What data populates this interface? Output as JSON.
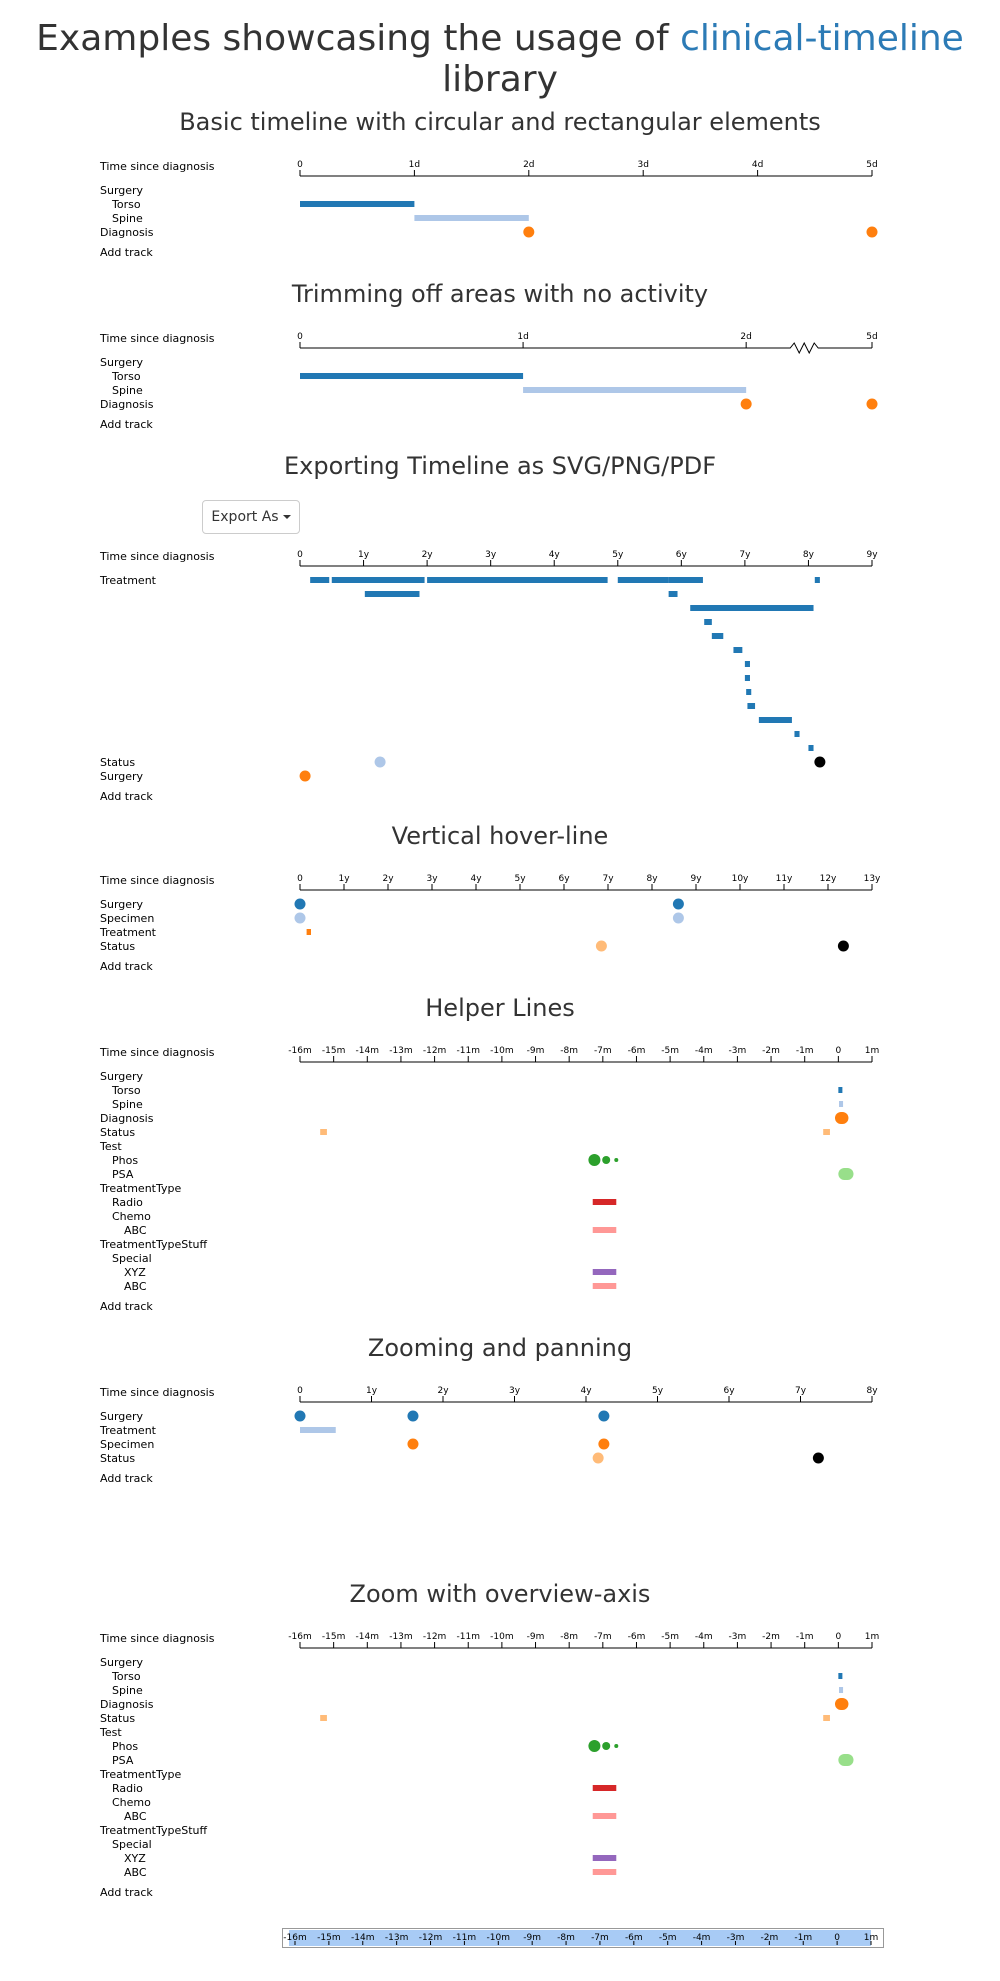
{
  "page": {
    "title_prefix": "Examples showcasing the usage of ",
    "title_link": "clinical-timeline",
    "title_suffix": " library"
  },
  "colors": {
    "dark_blue": "#2178b4",
    "light_blue": "#aec7e8",
    "orange": "#ff7f0e",
    "light_orange": "#ffbb78",
    "green": "#2ca02c",
    "light_green": "#98df8a",
    "red": "#d62728",
    "pink": "#ff9896",
    "purple": "#9467bd",
    "black": "#000000"
  },
  "export_button": {
    "label": "Export As"
  },
  "sections": [
    {
      "title": "Basic timeline with circular and rectangular elements",
      "axis_label": "Time since diagnosis",
      "ticks": [
        "0",
        "1d",
        "2d",
        "3d",
        "4d",
        "5d"
      ],
      "tick_values": [
        0,
        1,
        2,
        3,
        4,
        5
      ],
      "domain": [
        0,
        5
      ],
      "break": null,
      "tracks": [
        {
          "label": "Surgery",
          "indent": 0
        },
        {
          "label": "Torso",
          "indent": 1
        },
        {
          "label": "Spine",
          "indent": 1
        },
        {
          "label": "Diagnosis",
          "indent": 0
        }
      ],
      "add_track": "Add track",
      "events": [
        {
          "row": 1,
          "type": "rect",
          "start": 0,
          "end": 1,
          "color": "#2178b4"
        },
        {
          "row": 2,
          "type": "rect",
          "start": 1,
          "end": 2,
          "color": "#aec7e8"
        },
        {
          "row": 3,
          "type": "circle",
          "at": 2,
          "color": "#ff7f0e"
        },
        {
          "row": 3,
          "type": "circle",
          "at": 5,
          "color": "#ff7f0e"
        }
      ]
    },
    {
      "title": "Trimming off areas with no activity",
      "axis_label": "Time since diagnosis",
      "ticks": [
        "0",
        "1d",
        "2d",
        "5d"
      ],
      "tick_values": [
        0,
        1,
        2,
        5
      ],
      "domain": [
        0,
        5
      ],
      "break": {
        "from": 2,
        "to": 5
      },
      "tracks": [
        {
          "label": "Surgery",
          "indent": 0
        },
        {
          "label": "Torso",
          "indent": 1
        },
        {
          "label": "Spine",
          "indent": 1
        },
        {
          "label": "Diagnosis",
          "indent": 0
        }
      ],
      "add_track": "Add track",
      "events": [
        {
          "row": 1,
          "type": "rect",
          "start": 0,
          "end": 1,
          "color": "#2178b4"
        },
        {
          "row": 2,
          "type": "rect",
          "start": 1,
          "end": 2,
          "color": "#aec7e8"
        },
        {
          "row": 3,
          "type": "circle",
          "at": 2,
          "color": "#ff7f0e"
        },
        {
          "row": 3,
          "type": "circle",
          "at": 5,
          "color": "#ff7f0e"
        }
      ]
    },
    {
      "title": "Exporting Timeline as SVG/PNG/PDF",
      "axis_label": "Time since diagnosis",
      "ticks": [
        "0",
        "1y",
        "2y",
        "3y",
        "4y",
        "5y",
        "6y",
        "7y",
        "8y",
        "9y"
      ],
      "tick_values": [
        0,
        1,
        2,
        3,
        4,
        5,
        6,
        7,
        8,
        9
      ],
      "domain": [
        0,
        9
      ],
      "break": null,
      "tracks": [
        {
          "label": "Treatment",
          "indent": 0,
          "span": 13
        },
        {
          "label": "Status",
          "indent": 0
        },
        {
          "label": "Surgery",
          "indent": 0
        }
      ],
      "add_track": "Add track",
      "events": [
        {
          "row": 0,
          "sub": 0,
          "type": "rect",
          "start": 0.16,
          "end": 0.46,
          "color": "#2178b4"
        },
        {
          "row": 0,
          "sub": 0,
          "type": "rect",
          "start": 0.5,
          "end": 1.96,
          "color": "#2178b4"
        },
        {
          "row": 0,
          "sub": 0,
          "type": "rect",
          "start": 2.0,
          "end": 4.84,
          "color": "#2178b4"
        },
        {
          "row": 0,
          "sub": 0,
          "type": "rect",
          "start": 5.0,
          "end": 5.8,
          "color": "#2178b4"
        },
        {
          "row": 0,
          "sub": 0,
          "type": "rect",
          "start": 5.8,
          "end": 6.34,
          "color": "#2178b4"
        },
        {
          "row": 0,
          "sub": 0,
          "type": "rect",
          "start": 8.1,
          "end": 8.18,
          "color": "#2178b4"
        },
        {
          "row": 0,
          "sub": 1,
          "type": "rect",
          "start": 1.02,
          "end": 1.88,
          "color": "#2178b4"
        },
        {
          "row": 0,
          "sub": 1,
          "type": "rect",
          "start": 5.8,
          "end": 5.94,
          "color": "#2178b4"
        },
        {
          "row": 0,
          "sub": 2,
          "type": "rect",
          "start": 6.14,
          "end": 8.08,
          "color": "#2178b4"
        },
        {
          "row": 0,
          "sub": 3,
          "type": "rect",
          "start": 6.36,
          "end": 6.48,
          "color": "#2178b4"
        },
        {
          "row": 0,
          "sub": 4,
          "type": "rect",
          "start": 6.48,
          "end": 6.66,
          "color": "#2178b4"
        },
        {
          "row": 0,
          "sub": 5,
          "type": "rect",
          "start": 6.82,
          "end": 6.96,
          "color": "#2178b4"
        },
        {
          "row": 0,
          "sub": 6,
          "type": "rect",
          "start": 7.0,
          "end": 7.08,
          "color": "#2178b4"
        },
        {
          "row": 0,
          "sub": 7,
          "type": "rect",
          "start": 7.0,
          "end": 7.08,
          "color": "#2178b4"
        },
        {
          "row": 0,
          "sub": 8,
          "type": "rect",
          "start": 7.02,
          "end": 7.1,
          "color": "#2178b4"
        },
        {
          "row": 0,
          "sub": 9,
          "type": "rect",
          "start": 7.04,
          "end": 7.16,
          "color": "#2178b4"
        },
        {
          "row": 0,
          "sub": 10,
          "type": "rect",
          "start": 7.22,
          "end": 7.74,
          "color": "#2178b4"
        },
        {
          "row": 0,
          "sub": 11,
          "type": "rect",
          "start": 7.78,
          "end": 7.86,
          "color": "#2178b4"
        },
        {
          "row": 0,
          "sub": 12,
          "type": "rect",
          "start": 8.0,
          "end": 8.08,
          "color": "#2178b4"
        },
        {
          "row": 1,
          "type": "circle",
          "at": 1.26,
          "color": "#aec7e8"
        },
        {
          "row": 1,
          "type": "circle",
          "at": 8.18,
          "color": "#000000"
        },
        {
          "row": 2,
          "type": "circle",
          "at": 0.08,
          "color": "#ff7f0e"
        }
      ]
    },
    {
      "title": "Vertical hover-line",
      "axis_label": "Time since diagnosis",
      "ticks": [
        "0",
        "1y",
        "2y",
        "3y",
        "4y",
        "5y",
        "6y",
        "7y",
        "8y",
        "9y",
        "10y",
        "11y",
        "12y",
        "13y"
      ],
      "tick_values": [
        0,
        1,
        2,
        3,
        4,
        5,
        6,
        7,
        8,
        9,
        10,
        11,
        12,
        13
      ],
      "domain": [
        0,
        13
      ],
      "break": null,
      "tracks": [
        {
          "label": "Surgery",
          "indent": 0
        },
        {
          "label": "Specimen",
          "indent": 0
        },
        {
          "label": "Treatment",
          "indent": 0
        },
        {
          "label": "Status",
          "indent": 0
        }
      ],
      "add_track": "Add track",
      "events": [
        {
          "row": 0,
          "type": "circle",
          "at": 0,
          "color": "#2178b4"
        },
        {
          "row": 0,
          "type": "circle",
          "at": 8.6,
          "color": "#2178b4"
        },
        {
          "row": 1,
          "type": "circle",
          "at": 0,
          "color": "#aec7e8"
        },
        {
          "row": 1,
          "type": "circle",
          "at": 8.6,
          "color": "#aec7e8"
        },
        {
          "row": 2,
          "type": "rect",
          "start": 0.15,
          "end": 0.25,
          "color": "#ff7f0e"
        },
        {
          "row": 3,
          "type": "circle",
          "at": 6.85,
          "color": "#ffbb78"
        },
        {
          "row": 3,
          "type": "circle",
          "at": 12.35,
          "color": "#000000"
        }
      ]
    },
    {
      "title": "Helper Lines",
      "axis_label": "Time since diagnosis",
      "ticks": [
        "-16m",
        "-15m",
        "-14m",
        "-13m",
        "-12m",
        "-11m",
        "-10m",
        "-9m",
        "-8m",
        "-7m",
        "-6m",
        "-5m",
        "-4m",
        "-3m",
        "-2m",
        "-1m",
        "0",
        "1m"
      ],
      "tick_values": [
        -16,
        -15,
        -14,
        -13,
        -12,
        -11,
        -10,
        -9,
        -8,
        -7,
        -6,
        -5,
        -4,
        -3,
        -2,
        -1,
        0,
        1
      ],
      "domain": [
        -16,
        1
      ],
      "break": null,
      "tracks": [
        {
          "label": "Surgery",
          "indent": 0
        },
        {
          "label": "Torso",
          "indent": 1
        },
        {
          "label": "Spine",
          "indent": 1
        },
        {
          "label": "Diagnosis",
          "indent": 0
        },
        {
          "label": "Status",
          "indent": 0
        },
        {
          "label": "Test",
          "indent": 0
        },
        {
          "label": "Phos",
          "indent": 1
        },
        {
          "label": "PSA",
          "indent": 1
        },
        {
          "label": "TreatmentType",
          "indent": 0
        },
        {
          "label": "Radio",
          "indent": 1
        },
        {
          "label": "Chemo",
          "indent": 1
        },
        {
          "label": "ABC",
          "indent": 2
        },
        {
          "label": "TreatmentTypeStuff",
          "indent": 0
        },
        {
          "label": "Special",
          "indent": 1
        },
        {
          "label": "XYZ",
          "indent": 2
        },
        {
          "label": "ABC",
          "indent": 2
        }
      ],
      "add_track": "Add track",
      "events": [
        {
          "row": 1,
          "type": "rect",
          "start": 0.0,
          "end": 0.12,
          "color": "#2178b4",
          "h": 6
        },
        {
          "row": 2,
          "type": "rect",
          "start": 0.02,
          "end": 0.14,
          "color": "#aec7e8",
          "h": 6
        },
        {
          "row": 3,
          "type": "blob",
          "start": -0.1,
          "end": 0.3,
          "color": "#ff7f0e"
        },
        {
          "row": 4,
          "type": "rect",
          "start": -15.4,
          "end": -15.2,
          "color": "#ffbb78",
          "h": 6
        },
        {
          "row": 4,
          "type": "rect",
          "start": -0.45,
          "end": -0.25,
          "color": "#ffbb78",
          "h": 6
        },
        {
          "row": 6,
          "type": "circle",
          "at": -7.25,
          "color": "#2ca02c",
          "r": 6
        },
        {
          "row": 6,
          "type": "circle",
          "at": -6.9,
          "color": "#2ca02c",
          "r": 4
        },
        {
          "row": 6,
          "type": "circle",
          "at": -6.6,
          "color": "#2ca02c",
          "r": 2
        },
        {
          "row": 7,
          "type": "blob",
          "start": 0.0,
          "end": 0.45,
          "color": "#98df8a"
        },
        {
          "row": 9,
          "type": "rect",
          "start": -7.3,
          "end": -6.6,
          "color": "#d62728",
          "h": 6
        },
        {
          "row": 11,
          "type": "rect",
          "start": -7.3,
          "end": -6.6,
          "color": "#ff9896",
          "h": 6
        },
        {
          "row": 14,
          "type": "rect",
          "start": -7.3,
          "end": -6.6,
          "color": "#9467bd",
          "h": 6
        },
        {
          "row": 15,
          "type": "rect",
          "start": -7.3,
          "end": -6.6,
          "color": "#ff9896",
          "h": 6
        }
      ]
    },
    {
      "title": "Zooming and panning",
      "axis_label": "Time since diagnosis",
      "ticks": [
        "0",
        "1y",
        "2y",
        "3y",
        "4y",
        "5y",
        "6y",
        "7y",
        "8y"
      ],
      "tick_values": [
        0,
        1,
        2,
        3,
        4,
        5,
        6,
        7,
        8
      ],
      "domain": [
        0,
        8
      ],
      "break": null,
      "tracks": [
        {
          "label": "Surgery",
          "indent": 0
        },
        {
          "label": "Treatment",
          "indent": 0
        },
        {
          "label": "Specimen",
          "indent": 0
        },
        {
          "label": "Status",
          "indent": 0
        }
      ],
      "add_track": "Add track",
      "events": [
        {
          "row": 0,
          "type": "circle",
          "at": 0,
          "color": "#2178b4"
        },
        {
          "row": 0,
          "type": "circle",
          "at": 1.58,
          "color": "#2178b4"
        },
        {
          "row": 0,
          "type": "circle",
          "at": 4.25,
          "color": "#2178b4"
        },
        {
          "row": 1,
          "type": "rect",
          "start": 0,
          "end": 0.5,
          "color": "#aec7e8"
        },
        {
          "row": 2,
          "type": "circle",
          "at": 1.58,
          "color": "#ff7f0e"
        },
        {
          "row": 2,
          "type": "circle",
          "at": 4.25,
          "color": "#ff7f0e"
        },
        {
          "row": 3,
          "type": "circle",
          "at": 4.17,
          "color": "#ffbb78"
        },
        {
          "row": 3,
          "type": "circle",
          "at": 7.25,
          "color": "#000000"
        }
      ]
    },
    {
      "title": "Zoom with overview-axis",
      "axis_label": "Time since diagnosis",
      "ticks": [
        "-16m",
        "-15m",
        "-14m",
        "-13m",
        "-12m",
        "-11m",
        "-10m",
        "-9m",
        "-8m",
        "-7m",
        "-6m",
        "-5m",
        "-4m",
        "-3m",
        "-2m",
        "-1m",
        "0",
        "1m"
      ],
      "tick_values": [
        -16,
        -15,
        -14,
        -13,
        -12,
        -11,
        -10,
        -9,
        -8,
        -7,
        -6,
        -5,
        -4,
        -3,
        -2,
        -1,
        0,
        1
      ],
      "domain": [
        -16,
        1
      ],
      "break": null,
      "tracks": [
        {
          "label": "Surgery",
          "indent": 0
        },
        {
          "label": "Torso",
          "indent": 1
        },
        {
          "label": "Spine",
          "indent": 1
        },
        {
          "label": "Diagnosis",
          "indent": 0
        },
        {
          "label": "Status",
          "indent": 0
        },
        {
          "label": "Test",
          "indent": 0
        },
        {
          "label": "Phos",
          "indent": 1
        },
        {
          "label": "PSA",
          "indent": 1
        },
        {
          "label": "TreatmentType",
          "indent": 0
        },
        {
          "label": "Radio",
          "indent": 1
        },
        {
          "label": "Chemo",
          "indent": 1
        },
        {
          "label": "ABC",
          "indent": 2
        },
        {
          "label": "TreatmentTypeStuff",
          "indent": 0
        },
        {
          "label": "Special",
          "indent": 1
        },
        {
          "label": "XYZ",
          "indent": 2
        },
        {
          "label": "ABC",
          "indent": 2
        }
      ],
      "add_track": "Add track",
      "events": [
        {
          "row": 1,
          "type": "rect",
          "start": 0.0,
          "end": 0.12,
          "color": "#2178b4",
          "h": 6
        },
        {
          "row": 2,
          "type": "rect",
          "start": 0.02,
          "end": 0.14,
          "color": "#aec7e8",
          "h": 6
        },
        {
          "row": 3,
          "type": "blob",
          "start": -0.1,
          "end": 0.3,
          "color": "#ff7f0e"
        },
        {
          "row": 4,
          "type": "rect",
          "start": -15.4,
          "end": -15.2,
          "color": "#ffbb78",
          "h": 6
        },
        {
          "row": 4,
          "type": "rect",
          "start": -0.45,
          "end": -0.25,
          "color": "#ffbb78",
          "h": 6
        },
        {
          "row": 6,
          "type": "circle",
          "at": -7.25,
          "color": "#2ca02c",
          "r": 6
        },
        {
          "row": 6,
          "type": "circle",
          "at": -6.9,
          "color": "#2ca02c",
          "r": 4
        },
        {
          "row": 6,
          "type": "circle",
          "at": -6.6,
          "color": "#2ca02c",
          "r": 2
        },
        {
          "row": 7,
          "type": "blob",
          "start": 0.0,
          "end": 0.45,
          "color": "#98df8a"
        },
        {
          "row": 9,
          "type": "rect",
          "start": -7.3,
          "end": -6.6,
          "color": "#d62728",
          "h": 6
        },
        {
          "row": 11,
          "type": "rect",
          "start": -7.3,
          "end": -6.6,
          "color": "#ff9896",
          "h": 6
        },
        {
          "row": 14,
          "type": "rect",
          "start": -7.3,
          "end": -6.6,
          "color": "#9467bd",
          "h": 6
        },
        {
          "row": 15,
          "type": "rect",
          "start": -7.3,
          "end": -6.6,
          "color": "#ff9896",
          "h": 6
        }
      ]
    }
  ],
  "overview_axis": {
    "ticks": [
      "-16m",
      "-15m",
      "-14m",
      "-13m",
      "-12m",
      "-11m",
      "-10m",
      "-9m",
      "-8m",
      "-7m",
      "-6m",
      "-5m",
      "-4m",
      "-3m",
      "-2m",
      "-1m",
      "0",
      "1m"
    ],
    "tick_values": [
      -16,
      -15,
      -14,
      -13,
      -12,
      -11,
      -10,
      -9,
      -8,
      -7,
      -6,
      -5,
      -4,
      -3,
      -2,
      -1,
      0,
      1
    ],
    "domain": [
      -16,
      1
    ]
  }
}
